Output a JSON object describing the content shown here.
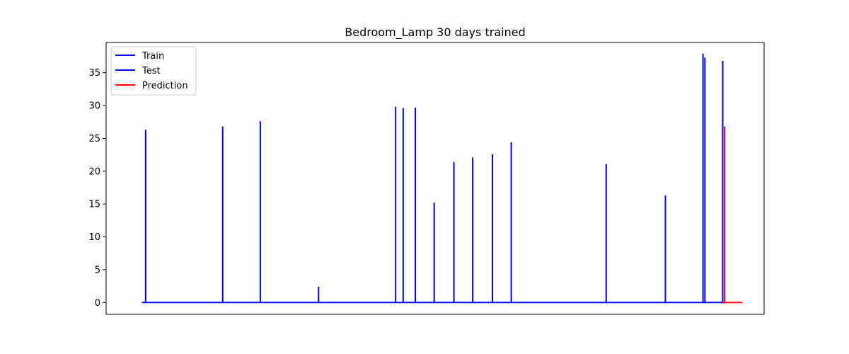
{
  "chart_data": {
    "type": "line",
    "title": "Bedroom_Lamp 30 days trained",
    "xlabel": "",
    "ylabel": "",
    "x_ticks_visible": false,
    "xlim": [
      -2,
      33
    ],
    "ylim": [
      -1.8,
      39.6
    ],
    "yticks": [
      0,
      5,
      10,
      15,
      20,
      25,
      30,
      35
    ],
    "grid": false,
    "legend_position": "upper-left",
    "legend": [
      "Train",
      "Test",
      "Prediction"
    ],
    "series": [
      {
        "name": "Train",
        "color": "#0000ff",
        "spikes": [
          {
            "x": 0.1,
            "y": 26.3
          },
          {
            "x": 4.2,
            "y": 26.8
          },
          {
            "x": 6.2,
            "y": 27.6
          },
          {
            "x": 9.3,
            "y": 2.4
          },
          {
            "x": 13.4,
            "y": 29.8
          },
          {
            "x": 13.8,
            "y": 29.6
          },
          {
            "x": 14.45,
            "y": 29.7
          },
          {
            "x": 15.45,
            "y": 15.2
          },
          {
            "x": 16.5,
            "y": 21.4
          },
          {
            "x": 17.5,
            "y": 22.1
          },
          {
            "x": 18.55,
            "y": 22.6
          },
          {
            "x": 19.55,
            "y": 24.4
          },
          {
            "x": 24.6,
            "y": 21.1
          },
          {
            "x": 27.75,
            "y": 16.3
          },
          {
            "x": 29.75,
            "y": 37.9
          },
          {
            "x": 29.85,
            "y": 37.3
          }
        ],
        "x_start": -0.1,
        "x_end": 30.8
      },
      {
        "name": "Test",
        "color": "#0000ff",
        "spikes": [
          {
            "x": 30.8,
            "y": 36.8
          }
        ],
        "x_start": 30.7,
        "x_end": 30.95
      },
      {
        "name": "Prediction",
        "color": "#ff0000",
        "spikes": [
          {
            "x": 30.9,
            "y": 26.8
          }
        ],
        "x_start": 30.8,
        "x_end": 31.85
      }
    ]
  }
}
